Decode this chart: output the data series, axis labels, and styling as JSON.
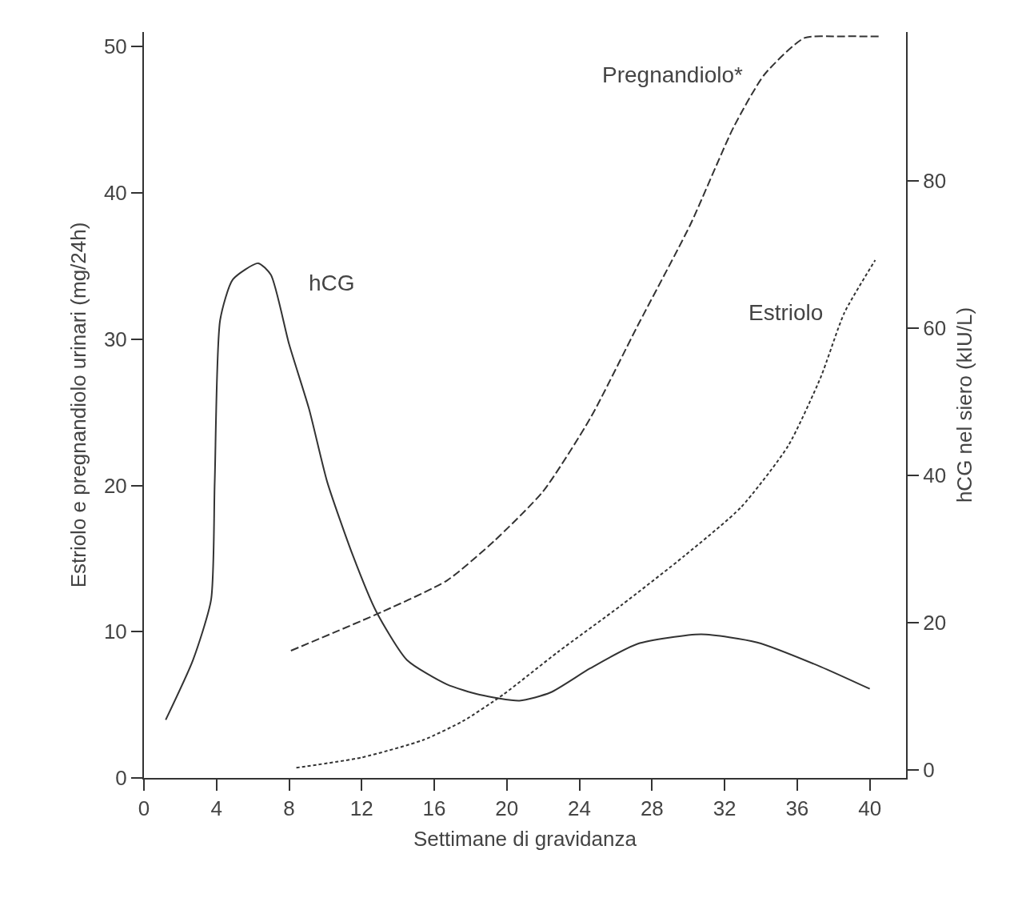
{
  "chart_data": {
    "type": "line",
    "xlabel": "Settimane di gravidanza",
    "ylabel": "Estriolo e pregnandiolo urinari (mg/24h)",
    "y2label": "hCG nel siero (kIU/L)",
    "xlim": [
      0,
      42
    ],
    "xticks": [
      0,
      4,
      8,
      12,
      16,
      20,
      24,
      28,
      32,
      36,
      40
    ],
    "ylim": [
      0,
      51
    ],
    "yticks": [
      0,
      10,
      20,
      30,
      40,
      50
    ],
    "y2lim": [
      -1.1,
      100.2
    ],
    "y2ticks": [
      0,
      20,
      40,
      60,
      80
    ],
    "legend": false,
    "marker": "none",
    "series": [
      {
        "name": "hCG",
        "color": "#333333",
        "axis": "y2",
        "line_style": "solid",
        "x": [
          1.2,
          2.7,
          3.7,
          3.9,
          4.2,
          4.9,
          6.3,
          7.0,
          8.0,
          9.1,
          10.1,
          11.5,
          12.8,
          14.5,
          16.7,
          18.5,
          20.7,
          22.4,
          24.6,
          27.2,
          30.7,
          33.8,
          37.3,
          40.0
        ],
        "values": [
          6.8,
          14.9,
          23.1,
          39.1,
          61.1,
          66.6,
          68.8,
          67.2,
          57.8,
          49.0,
          39.1,
          29.2,
          21.5,
          14.9,
          11.6,
          10.2,
          9.4,
          10.5,
          13.8,
          17.1,
          18.4,
          17.3,
          14.0,
          11.0
        ]
      },
      {
        "name": "Pregnandiolo*",
        "color": "#333333",
        "line_style": "dashed",
        "x": [
          8.1,
          13.2,
          16.7,
          19.3,
          22.0,
          24.6,
          27.2,
          30.1,
          32.5,
          34.2,
          36.4,
          38.2,
          40.6
        ],
        "values": [
          8.7,
          11.4,
          13.5,
          16.2,
          19.6,
          24.6,
          30.9,
          37.8,
          44.5,
          48.1,
          50.6,
          50.7,
          50.7
        ]
      },
      {
        "name": "Estriolo",
        "color": "#333333",
        "line_style": "dotted",
        "x": [
          8.4,
          12.0,
          15.4,
          17.6,
          19.8,
          22.8,
          26.3,
          29.8,
          32.9,
          35.5,
          37.3,
          38.6,
          40.3
        ],
        "values": [
          0.7,
          1.4,
          2.6,
          3.9,
          5.7,
          8.6,
          11.8,
          15.2,
          18.5,
          22.7,
          27.4,
          31.8,
          35.4
        ]
      }
    ]
  }
}
